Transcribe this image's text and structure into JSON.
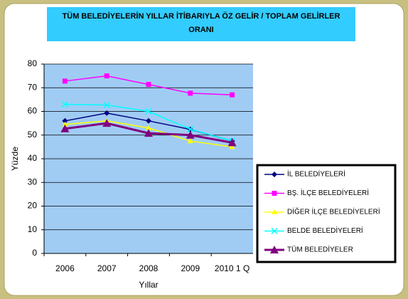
{
  "chart_data": {
    "type": "line",
    "title": [
      "TÜM BELEDİYELERİN YILLAR İTİBARIYLA ÖZ GELİR / TOPLAM GELİRLER",
      "ORANI"
    ],
    "x_label": "Yıllar",
    "y_label": "Yüzde",
    "categories": [
      "2006",
      "2007",
      "2008",
      "2009",
      "2010 1 Q"
    ],
    "ylim": [
      0,
      80
    ],
    "yticks": [
      0,
      10,
      20,
      30,
      40,
      50,
      60,
      70,
      80
    ],
    "grid": true,
    "legend": "right",
    "series": [
      {
        "name": "İL BELEDİYELERİ",
        "color": "#000080",
        "marker": "diamond",
        "values": [
          56,
          59.3,
          56,
          52.4,
          47.5
        ]
      },
      {
        "name": "BŞ. İLÇE BELEDİYELERİ",
        "color": "#ff00ff",
        "marker": "square",
        "values": [
          72.8,
          75,
          71.4,
          67.7,
          67
        ]
      },
      {
        "name": "DİĞER İLÇE BELEDİYELERİ",
        "color": "#ffff00",
        "marker": "triangle",
        "values": [
          54.5,
          56,
          53,
          47.5,
          45
        ]
      },
      {
        "name": "BELDE BELEDİYELERİ",
        "color": "#00ffff",
        "marker": "x",
        "values": [
          63,
          62.7,
          60,
          52.5,
          47.5
        ]
      },
      {
        "name": "TÜM BELEDİYELER",
        "color": "#800080",
        "marker": "bigtriangle",
        "values": [
          52.7,
          55,
          50.8,
          50,
          46.8
        ]
      }
    ]
  }
}
